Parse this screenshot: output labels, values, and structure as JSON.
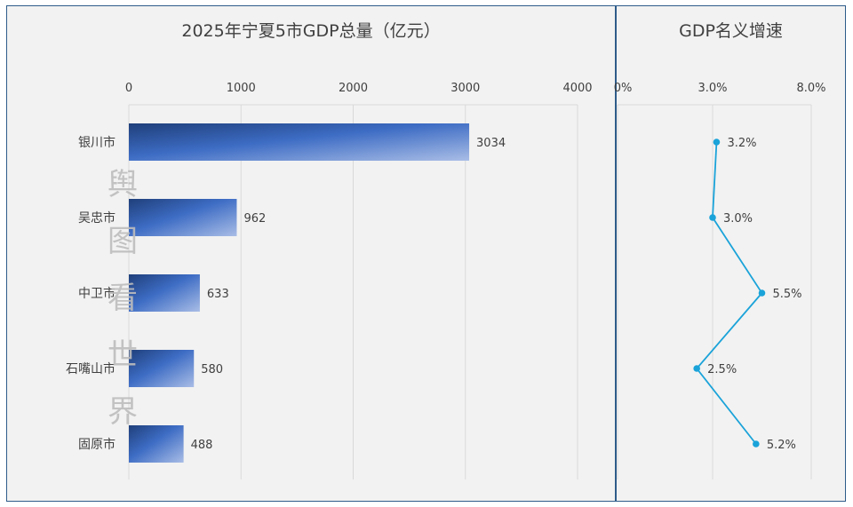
{
  "left_title": "2025年宁夏5市GDP总量（亿元）",
  "right_title": "GDP名义增速",
  "watermark": [
    "舆",
    "图",
    "看",
    "世",
    "界"
  ],
  "chart_data": [
    {
      "type": "bar",
      "orientation": "horizontal",
      "title": "2025年宁夏5市GDP总量（亿元）",
      "categories": [
        "银川市",
        "吴忠市",
        "中卫市",
        "石嘴山市",
        "固原市"
      ],
      "values": [
        3034,
        962,
        633,
        580,
        488
      ],
      "data_labels": [
        "3034",
        "962",
        "633",
        "580",
        "488"
      ],
      "xlim": [
        0,
        4000
      ],
      "x_ticks": [
        "0",
        "1000",
        "2000",
        "3000",
        "4000"
      ],
      "grid": true,
      "colors": {
        "bar_dark": "#1f3f7a",
        "bar_mid": "#3d6cc4",
        "bar_light": "#a9bde6"
      }
    },
    {
      "type": "line",
      "title": "GDP名义增速",
      "categories": [
        "银川市",
        "吴忠市",
        "中卫市",
        "石嘴山市",
        "固原市"
      ],
      "values": [
        3.2,
        3.0,
        5.5,
        2.5,
        5.2
      ],
      "data_labels": [
        "3.2%",
        "3.0%",
        "5.5%",
        "2.5%",
        "5.2%"
      ],
      "xlim": [
        0,
        8
      ],
      "x_ticks": [
        "0%",
        "3.0%",
        "8.0%"
      ],
      "grid": true,
      "colors": {
        "line": "#1aa3d9"
      }
    }
  ]
}
